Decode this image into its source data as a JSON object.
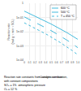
{
  "chart_data": {
    "type": "line",
    "xlabel": "Conversion rate",
    "ylabel": "Reaction rate\n(mol g⁻¹ min⁻¹ SO₂)",
    "x": [
      0.0,
      0.05,
      0.1,
      0.15,
      0.2,
      0.25,
      0.3,
      0.35,
      0.4,
      0.45,
      0.5,
      0.55,
      0.6,
      0.65,
      0.7,
      0.75,
      0.8,
      0.85,
      0.9,
      0.95,
      1.0
    ],
    "series": [
      {
        "name": "600 °C",
        "color": "#44bbdd",
        "line_style": "solid",
        "values": [
          0.28,
          0.23,
          0.19,
          0.155,
          0.126,
          0.102,
          0.083,
          0.067,
          0.054,
          0.043,
          0.035,
          0.028,
          0.022,
          0.017,
          0.014,
          0.011,
          0.0085,
          0.0065,
          0.005,
          0.0038,
          0.0029
        ]
      },
      {
        "name": "500 °C",
        "color": "#44bbdd",
        "line_style": "dashed",
        "values": [
          0.11,
          0.089,
          0.072,
          0.058,
          0.047,
          0.037,
          0.03,
          0.024,
          0.019,
          0.015,
          0.012,
          0.0093,
          0.0073,
          0.0056,
          0.0043,
          0.0033,
          0.0025,
          0.0019,
          0.0014,
          0.001,
          0.00075
        ]
      },
      {
        "name": "T = 450 °C",
        "color": "#44bbdd",
        "line_style": "dotted",
        "values": [
          0.042,
          0.034,
          0.027,
          0.022,
          0.018,
          0.014,
          0.011,
          0.0088,
          0.007,
          0.0055,
          0.0043,
          0.0033,
          0.0026,
          0.002,
          0.0015,
          0.0011,
          0.00085,
          0.00063,
          0.00046,
          0.00033,
          0.00024
        ]
      }
    ],
    "xlim": [
      0,
      1.0
    ],
    "ylim": [
      0.0001,
      1
    ],
    "xticks": [
      0,
      0.1,
      0.2,
      0.3,
      0.4,
      0.5,
      0.6,
      0.7,
      0.8,
      0.9,
      {
        "value": 1.0,
        "label": "1.0"
      }
    ],
    "yticks": [
      {
        "value": 0.0001,
        "label": "1e-04"
      },
      {
        "value": 0.001,
        "label": "1e-03"
      },
      {
        "value": 0.01,
        "label": "1e-02"
      },
      {
        "value": 0.1,
        "label": "1e-01"
      },
      1
    ],
    "log": "y",
    "grid": true,
    "legend": "upper right",
    "annotations": [
      "Reaction rate constants from catalytic combustion,",
      "with constant compositions",
      "SO₂ = 1%  atmospheric pressure",
      "O₂ = 12 %"
    ]
  }
}
